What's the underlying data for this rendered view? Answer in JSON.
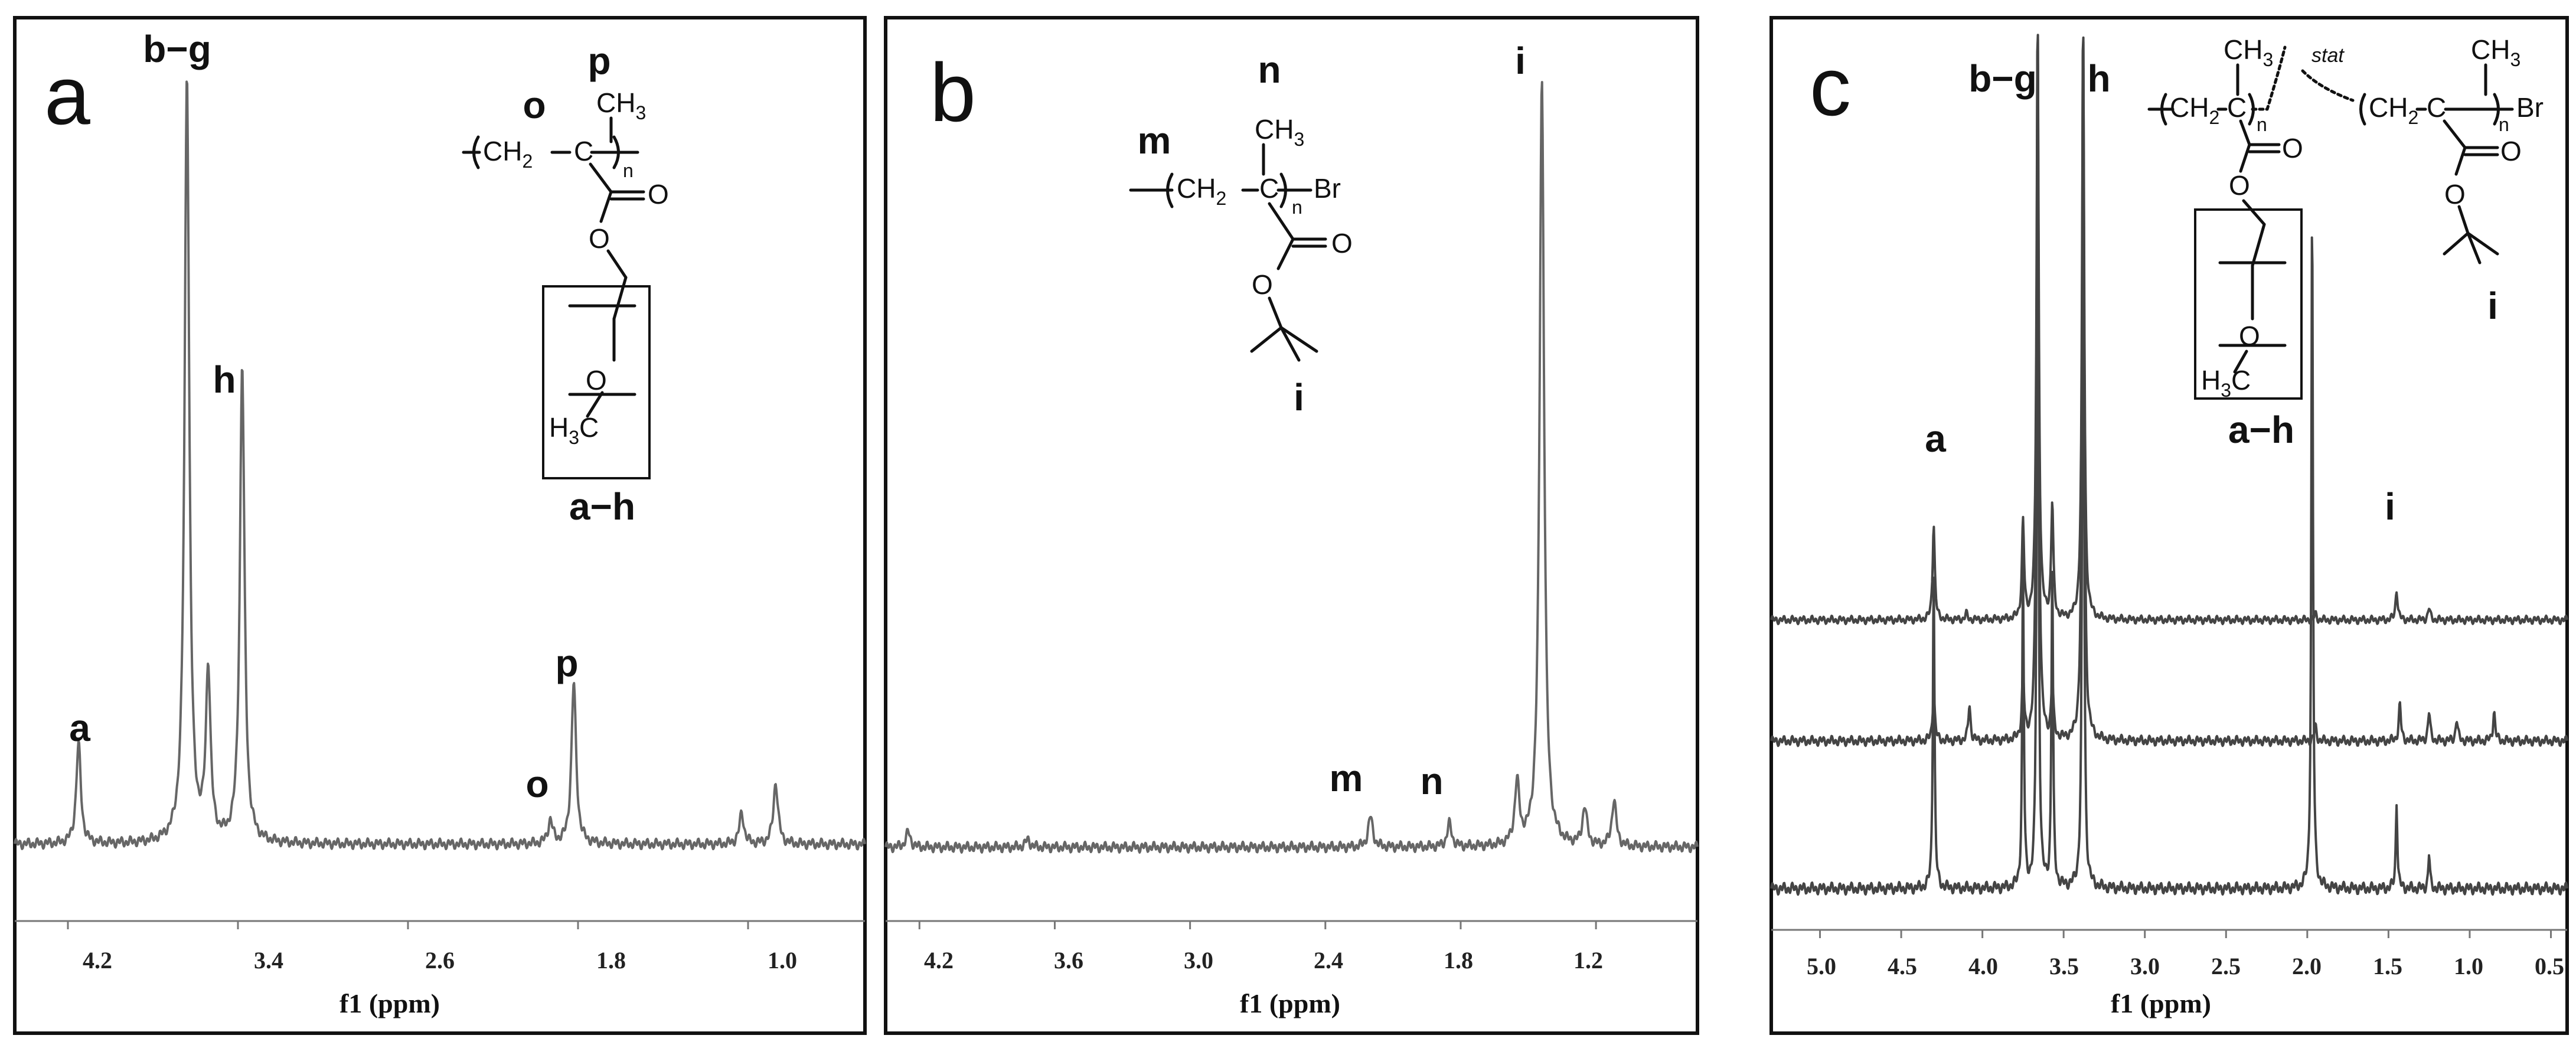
{
  "panels": [
    {
      "letter": "a",
      "peak_labels": [
        "b−g",
        "p",
        "o",
        "h",
        "a",
        "p",
        "a−h"
      ],
      "xlabel": "f1 (ppm)",
      "tick_labels": [
        "4.2",
        "3.4",
        "2.6",
        "1.8",
        "1.0"
      ]
    },
    {
      "letter": "b",
      "peak_labels": [
        "n",
        "i",
        "m",
        "i",
        "m",
        "n"
      ],
      "xlabel": "f1 (ppm)",
      "tick_labels": [
        "4.2",
        "3.6",
        "3.0",
        "2.4",
        "1.8",
        "1.2"
      ]
    },
    {
      "letter": "c",
      "peak_labels": [
        "b−g",
        "h",
        "a",
        "i",
        "a−h",
        "i"
      ],
      "xlabel": "f1 (ppm)",
      "tick_labels": [
        "5.0",
        "4.5",
        "4.0",
        "3.5",
        "3.0",
        "2.5",
        "2.0",
        "1.5",
        "1.0",
        "0.5"
      ]
    }
  ],
  "chem": {
    "ch3": "CH",
    "ch3_sub": "3",
    "ch2": "CH",
    "ch2_sub": "2",
    "c": "C",
    "n": "n",
    "o": "O",
    "br": "Br",
    "h3c": "H",
    "h3c_sub": "3",
    "h3c_c": "C",
    "stat": "stat"
  },
  "chart_data": [
    {
      "type": "line",
      "panel": "a",
      "xlabel": "f1 (ppm)",
      "ylabel": "",
      "xlim": [
        4.45,
        0.45
      ],
      "x_reversed": true,
      "x_ticks": [
        4.2,
        3.4,
        2.6,
        1.8,
        1.0
      ],
      "grid": false,
      "legend": "none",
      "series": [
        {
          "peaks": [
            {
              "label": "a",
              "ppm": 4.15,
              "height": 0.13
            },
            {
              "label": "b−g",
              "ppm": 3.64,
              "height": 1.0
            },
            {
              "ppm": 3.54,
              "height": 0.22
            },
            {
              "label": "h",
              "ppm": 3.38,
              "height": 0.62
            },
            {
              "label": "o",
              "ppm": 1.93,
              "height": 0.03
            },
            {
              "label": "p",
              "ppm": 1.82,
              "height": 0.21
            },
            {
              "ppm": 1.03,
              "height": 0.04
            },
            {
              "ppm": 0.87,
              "height": 0.08
            }
          ]
        }
      ]
    },
    {
      "type": "line",
      "panel": "b",
      "xlabel": "f1 (ppm)",
      "ylabel": "",
      "xlim": [
        4.35,
        0.75
      ],
      "x_reversed": true,
      "x_ticks": [
        4.2,
        3.6,
        3.0,
        2.4,
        1.8,
        1.2
      ],
      "grid": false,
      "legend": "none",
      "series": [
        {
          "peaks": [
            {
              "ppm": 4.25,
              "height": 0.02
            },
            {
              "ppm": 3.72,
              "height": 0.01
            },
            {
              "label": "m",
              "ppm": 2.2,
              "height": 0.04
            },
            {
              "label": "n",
              "ppm": 1.85,
              "height": 0.03
            },
            {
              "ppm": 1.55,
              "height": 0.08
            },
            {
              "label": "i",
              "ppm": 1.44,
              "height": 1.0
            },
            {
              "ppm": 1.25,
              "height": 0.05
            },
            {
              "ppm": 1.12,
              "height": 0.06
            }
          ]
        }
      ]
    },
    {
      "type": "line",
      "panel": "c",
      "xlabel": "f1 (ppm)",
      "ylabel": "",
      "xlim": [
        5.3,
        0.4
      ],
      "x_reversed": true,
      "x_ticks": [
        5.0,
        4.5,
        4.0,
        3.5,
        3.0,
        2.5,
        2.0,
        1.5,
        1.0,
        0.5
      ],
      "grid": false,
      "legend": "none",
      "series": [
        {
          "trace": "top",
          "peaks": [
            {
              "label": "a",
              "ppm": 4.3,
              "height": 0.16
            },
            {
              "ppm": 4.1,
              "height": 0.01
            },
            {
              "ppm": 3.75,
              "height": 0.16
            },
            {
              "label": "b−g",
              "ppm": 3.66,
              "height": 1.0
            },
            {
              "ppm": 3.57,
              "height": 0.19
            },
            {
              "label": "h",
              "ppm": 3.38,
              "height": 1.0
            },
            {
              "ppm": 1.95,
              "height": 0.01
            },
            {
              "label": "i",
              "ppm": 1.45,
              "height": 0.05
            },
            {
              "ppm": 1.25,
              "height": 0.02
            }
          ]
        },
        {
          "trace": "middle",
          "peaks": [
            {
              "ppm": 4.3,
              "height": 0.07
            },
            {
              "ppm": 4.08,
              "height": 0.05
            },
            {
              "ppm": 3.75,
              "height": 0.09
            },
            {
              "ppm": 3.66,
              "height": 1.0
            },
            {
              "ppm": 3.57,
              "height": 0.08
            },
            {
              "ppm": 3.38,
              "height": 1.0
            },
            {
              "ppm": 1.95,
              "height": 0.02
            },
            {
              "ppm": 1.43,
              "height": 0.05
            },
            {
              "ppm": 1.25,
              "height": 0.04
            },
            {
              "ppm": 1.08,
              "height": 0.03
            },
            {
              "ppm": 0.85,
              "height": 0.04
            }
          ]
        },
        {
          "trace": "bottom",
          "peaks": [
            {
              "ppm": 4.3,
              "height": 0.37
            },
            {
              "ppm": 3.75,
              "height": 0.37
            },
            {
              "ppm": 3.66,
              "height": 1.0
            },
            {
              "ppm": 3.57,
              "height": 0.37
            },
            {
              "ppm": 3.38,
              "height": 1.0
            },
            {
              "ppm": 1.97,
              "height": 0.79
            },
            {
              "ppm": 1.45,
              "height": 0.1
            },
            {
              "ppm": 1.25,
              "height": 0.04
            }
          ]
        }
      ]
    }
  ]
}
